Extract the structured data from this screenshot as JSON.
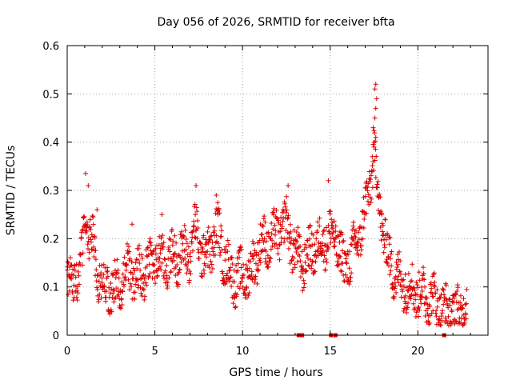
{
  "chart_data": {
    "type": "scatter",
    "title": "Day 056 of 2026, SRMTID for receiver bfta",
    "xlabel": "GPS time / hours",
    "ylabel": "SRMTID / TECUs",
    "xlim": [
      0,
      24
    ],
    "ylim": [
      0,
      0.6
    ],
    "xticks": [
      0,
      5,
      10,
      15,
      20
    ],
    "yticks": [
      0,
      0.1,
      0.2,
      0.3,
      0.4,
      0.5,
      0.6
    ],
    "xtick_labels": [
      "0",
      "5",
      "10",
      "15",
      "20"
    ],
    "ytick_labels": [
      "0",
      "0.1",
      "0.2",
      "0.3",
      "0.4",
      "0.5",
      "0.6"
    ],
    "grid": true,
    "marker": "+",
    "series_color": "#dd0000",
    "series": [
      {
        "name": "bfta",
        "x_start": 0.0,
        "x_step": 0.018,
        "trend": [
          [
            0.0,
            0.11
          ],
          [
            0.5,
            0.12
          ],
          [
            0.9,
            0.17
          ],
          [
            1.0,
            0.28
          ],
          [
            1.2,
            0.2
          ],
          [
            1.5,
            0.18
          ],
          [
            1.8,
            0.13
          ],
          [
            2.2,
            0.1
          ],
          [
            3.0,
            0.1
          ],
          [
            3.5,
            0.13
          ],
          [
            4.0,
            0.12
          ],
          [
            4.5,
            0.14
          ],
          [
            5.0,
            0.16
          ],
          [
            5.5,
            0.15
          ],
          [
            6.0,
            0.16
          ],
          [
            6.5,
            0.17
          ],
          [
            7.0,
            0.17
          ],
          [
            7.3,
            0.22
          ],
          [
            7.8,
            0.16
          ],
          [
            8.3,
            0.19
          ],
          [
            8.6,
            0.22
          ],
          [
            9.0,
            0.15
          ],
          [
            9.5,
            0.12
          ],
          [
            10.0,
            0.12
          ],
          [
            10.5,
            0.13
          ],
          [
            11.0,
            0.19
          ],
          [
            11.5,
            0.19
          ],
          [
            12.0,
            0.21
          ],
          [
            12.5,
            0.23
          ],
          [
            13.0,
            0.17
          ],
          [
            13.5,
            0.15
          ],
          [
            14.0,
            0.18
          ],
          [
            14.5,
            0.19
          ],
          [
            15.0,
            0.21
          ],
          [
            15.3,
            0.2
          ],
          [
            15.8,
            0.14
          ],
          [
            16.3,
            0.17
          ],
          [
            16.8,
            0.22
          ],
          [
            17.3,
            0.32
          ],
          [
            17.5,
            0.38
          ],
          [
            17.8,
            0.27
          ],
          [
            18.3,
            0.16
          ],
          [
            18.8,
            0.12
          ],
          [
            19.5,
            0.1
          ],
          [
            20.0,
            0.09
          ],
          [
            20.5,
            0.08
          ],
          [
            21.0,
            0.07
          ],
          [
            21.5,
            0.05
          ],
          [
            22.2,
            0.05
          ],
          [
            22.8,
            0.06
          ]
        ],
        "peaks": [
          [
            1.05,
            0.335
          ],
          [
            1.2,
            0.31
          ],
          [
            1.7,
            0.26
          ],
          [
            3.7,
            0.23
          ],
          [
            5.4,
            0.25
          ],
          [
            7.35,
            0.31
          ],
          [
            8.5,
            0.29
          ],
          [
            12.6,
            0.31
          ],
          [
            14.9,
            0.32
          ],
          [
            17.6,
            0.52
          ],
          [
            17.55,
            0.51
          ],
          [
            17.65,
            0.49
          ],
          [
            17.6,
            0.47
          ],
          [
            17.55,
            0.45
          ],
          [
            17.45,
            0.43
          ],
          [
            17.6,
            0.41
          ],
          [
            17.5,
            0.39
          ],
          [
            17.4,
            0.37
          ]
        ],
        "outliers": [
          [
            13.2,
            0.0
          ],
          [
            13.4,
            0.0
          ],
          [
            15.05,
            0.0
          ],
          [
            15.3,
            0.0
          ],
          [
            21.5,
            0.0
          ]
        ]
      }
    ]
  }
}
